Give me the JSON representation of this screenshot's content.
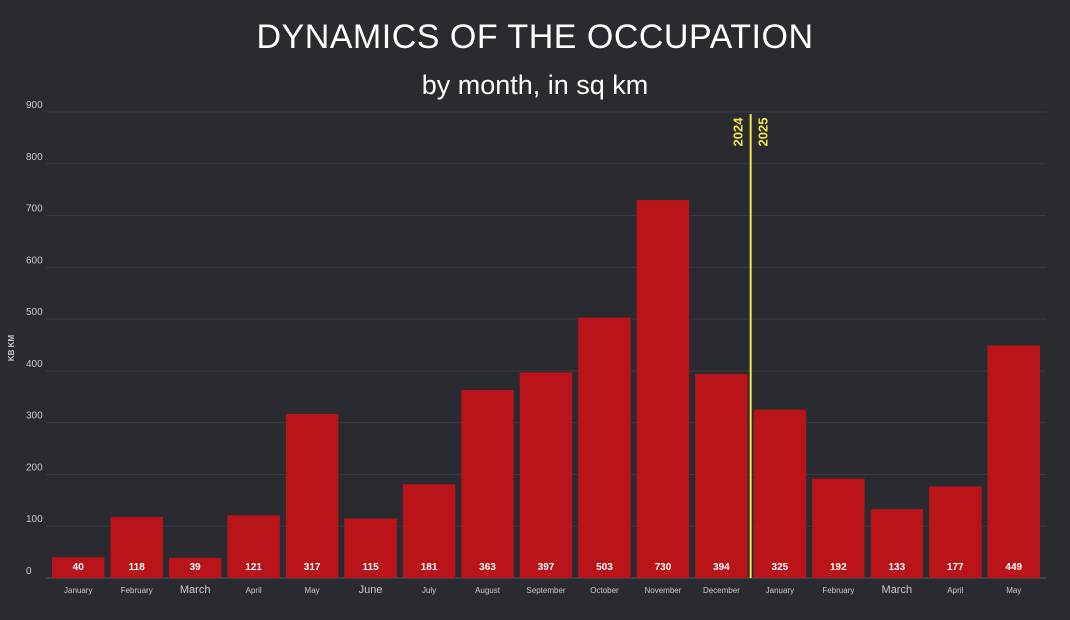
{
  "chart_data": {
    "type": "bar",
    "title": "DYNAMICS OF THE OCCUPATION",
    "subtitle": "by month, in sq km",
    "ylabel": "KB KM",
    "ylim": [
      0,
      900
    ],
    "yticks": [
      0,
      100,
      200,
      300,
      400,
      500,
      600,
      700,
      800,
      900
    ],
    "grid": true,
    "categories": [
      "January",
      "February",
      "March",
      "April",
      "May",
      "June",
      "July",
      "August",
      "September",
      "October",
      "November",
      "December",
      "January",
      "February",
      "March",
      "April",
      "May"
    ],
    "values": [
      40,
      118,
      39,
      121,
      317,
      115,
      181,
      363,
      397,
      503,
      730,
      394,
      325,
      192,
      133,
      177,
      449
    ],
    "bar_color": "#b81419",
    "year_divider": {
      "after_category_index": 11,
      "left_label": "2024",
      "right_label": "2025",
      "color": "#f2e64a"
    }
  }
}
